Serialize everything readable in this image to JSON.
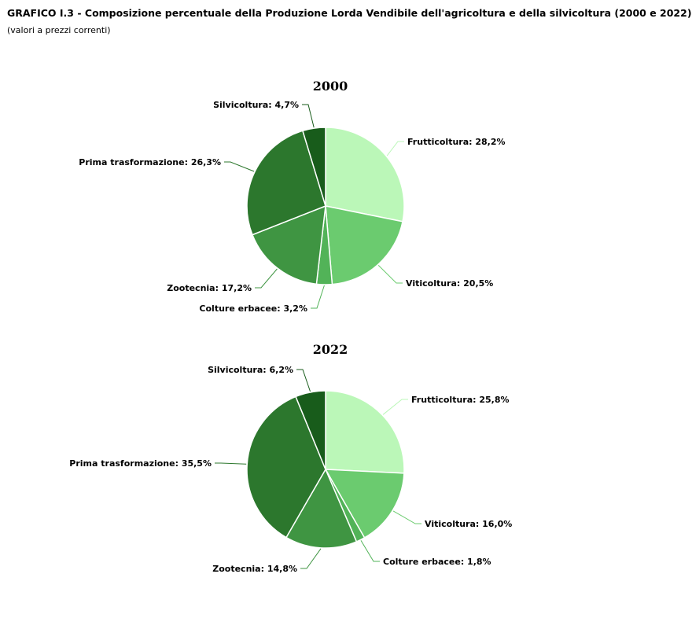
{
  "header": {
    "title": "GRAFICO I.3 - Composizione percentuale della Produzione Lorda Vendibile dell'agricoltura e della silvicoltura (2000 e 2022)",
    "subtitle": "(valori a prezzi correnti)"
  },
  "colors": {
    "Frutticoltura": "#bbf7b8",
    "Viticoltura": "#6bcb6f",
    "Colture erbacee": "#52b358",
    "Zootecnia": "#3f9542",
    "Prima trasformazione": "#2c772d",
    "Silvicoltura": "#185c1b"
  },
  "chart_data": [
    {
      "type": "pie",
      "title": "2000",
      "categories": [
        "Frutticoltura",
        "Viticoltura",
        "Colture erbacee",
        "Zootecnia",
        "Prima trasformazione",
        "Silvicoltura"
      ],
      "values": [
        28.2,
        20.5,
        3.2,
        17.2,
        26.3,
        4.7
      ],
      "labels": [
        "Frutticoltura: 28,2%",
        "Viticoltura: 20,5%",
        "Colture erbacee: 3,2%",
        "Zootecnia: 17,2%",
        "Prima trasformazione: 26,3%",
        "Silvicoltura: 4,7%"
      ]
    },
    {
      "type": "pie",
      "title": "2022",
      "categories": [
        "Frutticoltura",
        "Viticoltura",
        "Colture erbacee",
        "Zootecnia",
        "Prima trasformazione",
        "Silvicoltura"
      ],
      "values": [
        25.8,
        16.0,
        1.8,
        14.8,
        35.5,
        6.2
      ],
      "labels": [
        "Frutticoltura: 25,8%",
        "Viticoltura: 16,0%",
        "Colture erbacee: 1,8%",
        "Zootecnia: 14,8%",
        "Prima trasformazione: 35,5%",
        "Silvicoltura: 6,2%"
      ]
    }
  ]
}
